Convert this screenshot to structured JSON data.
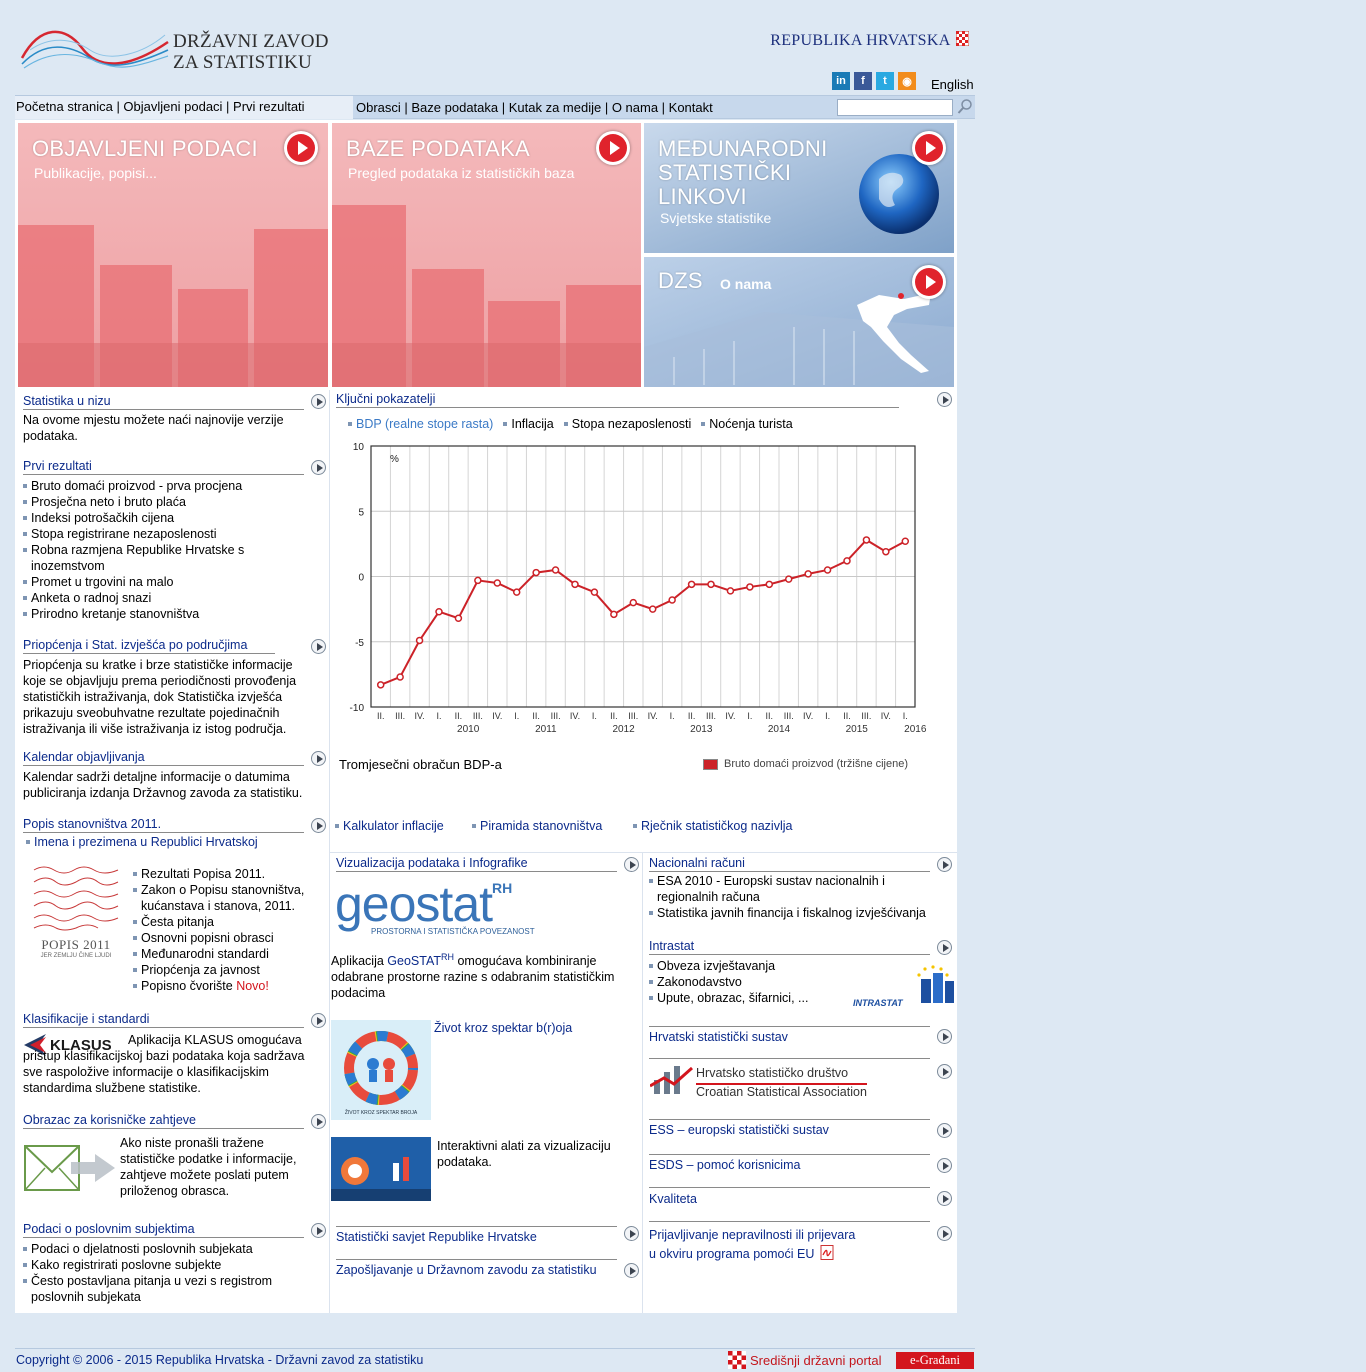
{
  "header": {
    "logo_line1": "DRŽAVNI ZAVOD",
    "logo_line2": "ZA STATISTIKU",
    "republic": "REPUBLIKA HRVATSKA",
    "english": "English"
  },
  "nav": {
    "left": "Početna stranica | Objavljeni podaci | Prvi rezultati",
    "right": "Obrasci | Baze podataka | Kutak za medije | O nama | Kontakt",
    "search_placeholder": ""
  },
  "tiles": {
    "t1": {
      "title": "OBJAVLJENI PODACI",
      "sub": "Publikacije, popisi..."
    },
    "t2": {
      "title": "BAZE PODATAKA",
      "sub": "Pregled podataka iz statističkih baza"
    },
    "t3": {
      "title1": "MEĐUNARODNI",
      "title2": "STATISTIČKI",
      "title3": "LINKOVI",
      "sub": "Svjetske statistike"
    },
    "t4": {
      "title": "DZS",
      "sub": "O nama"
    }
  },
  "left": {
    "s1": {
      "title": "Statistika u nizu",
      "text": "Na ovome mjestu možete naći najnovije verzije podataka."
    },
    "s2": {
      "title": "Prvi rezultati",
      "items": [
        "Bruto domaći proizvod - prva procjena",
        "Prosječna neto i bruto plaća",
        "Indeksi potrošačkih cijena",
        "Stopa registrirane nezaposlenosti",
        "Robna razmjena Republike Hrvatske s inozemstvom",
        "Promet u trgovini na malo",
        "Anketa o radnoj snazi",
        "Prirodno kretanje stanovništva"
      ]
    },
    "s3": {
      "title": "Priopćenja i Stat. izvješća po područjima",
      "text": "Priopćenja su kratke i brze statističke informacije koje se objavljuju prema periodičnosti provođenja statističkih istraživanja, dok Statistička izvješća prikazuju sveobuhvatne rezultate pojedinačnih istraživanja ili više istraživanja iz istog područja."
    },
    "s4": {
      "title": "Kalendar objavljivanja",
      "text": "Kalendar sadrži detaljne informacije o datumima publiciranja izdanja Državnog zavoda za statistiku."
    },
    "s5": {
      "title": "Popis stanovništva 2011.",
      "link": "Imena i prezimena u Republici Hrvatskoj",
      "logo": "POPIS 2011",
      "logo_sub": "JER ZEMLJU ČINE LJUDI",
      "items": [
        "Rezultati Popisa 2011.",
        "Zakon o Popisu stanovništva, kućanstava i stanova, 2011.",
        "Česta pitanja",
        "Osnovni popisni obrasci",
        "Međunarodni standardi",
        "Priopćenja za javnost",
        "Popisno čvorište"
      ],
      "novo": "Novo!"
    },
    "s6": {
      "title": "Klasifikacije i standardi",
      "logo": "KLASUS",
      "text": "Aplikacija KLASUS omogućava pristup klasifikacijskoj bazi podataka koja sadržava sve raspoložive informacije o klasifikacijskim standardima službene statistike."
    },
    "s7": {
      "title": "Obrazac za korisničke zahtjeve",
      "text": "Ako niste pronašli tražene statističke podatke i informacije, zahtjeve možete poslati putem priloženog obrasca."
    },
    "s8": {
      "title": "Podaci o poslovnim subjektima",
      "items": [
        "Podaci o djelatnosti poslovnih subjekata",
        "Kako registrirati poslovne subjekte",
        "Često postavljana pitanja u vezi s registrom poslovnih subjekata"
      ]
    }
  },
  "indicators": {
    "title": "Ključni pokazatelji",
    "tabs": [
      "BDP (realne stope rasta)",
      "Inflacija",
      "Stopa nezaposlenosti",
      "Noćenja turista"
    ],
    "chart_caption": "Tromjesečni obračun BDP-a",
    "links": [
      "Kalkulator inflacije",
      "Piramida stanovništva",
      "Rječnik statističkog nazivlja"
    ]
  },
  "chart_data": {
    "type": "line",
    "ylabel": "%",
    "ylim": [
      -10,
      10
    ],
    "yticks": [
      "10",
      "5",
      "0",
      "-5",
      "-10"
    ],
    "x": [
      "II.",
      "III.",
      "IV.",
      "I.",
      "II.",
      "III.",
      "IV.",
      "I.",
      "II.",
      "III.",
      "IV.",
      "I.",
      "II.",
      "III.",
      "IV.",
      "I.",
      "II.",
      "III.",
      "IV.",
      "I.",
      "II.",
      "III.",
      "IV.",
      "I.",
      "II.",
      "III.",
      "IV.",
      "I."
    ],
    "year_labels": [
      "2010",
      "2011",
      "2012",
      "2013",
      "2014",
      "2015",
      "2016"
    ],
    "series": [
      {
        "name": "Bruto domaći proizvod (tržišne cijene)",
        "color": "#cc2228",
        "values": [
          -8.3,
          -7.7,
          -4.9,
          -2.7,
          -3.2,
          -0.3,
          -0.5,
          -1.2,
          0.3,
          0.5,
          -0.6,
          -1.2,
          -2.9,
          -2.0,
          -2.5,
          -1.8,
          -0.6,
          -0.6,
          -1.1,
          -0.8,
          -0.6,
          -0.2,
          0.2,
          0.5,
          1.2,
          2.8,
          1.9,
          2.7
        ]
      }
    ],
    "grid": true,
    "legend": "bottom-right"
  },
  "middle": {
    "viz": {
      "title": "Vizualizacija podataka i Infografike",
      "logo": "geostat",
      "logo_sup": "RH",
      "logo_sub": "PROSTORNA I STATISTIČKA POVEZANOST",
      "text_before": "Aplikacija ",
      "app": "GeoSTAT",
      "app_sup": "RH",
      "text_after": " omogućava kombiniranje odabrane prostorne razine s odabranim statističkim podacima"
    },
    "zivot": {
      "title": "Život kroz spektar b(r)oja",
      "thumb_label": "ŽIVOT KROZ SPEKTAR BROJA"
    },
    "alati": {
      "text": "Interaktivni alati za vizualizaciju podataka."
    },
    "links": [
      "Statistički savjet Republike Hrvatske",
      "Zapošljavanje u Državnom zavodu za statistiku"
    ]
  },
  "right": {
    "nr": {
      "title": "Nacionalni računi",
      "items": [
        "ESA 2010 - Europski sustav nacionalnih i regionalnih računa",
        "Statistika javnih financija i fiskalnog izvješćivanja"
      ]
    },
    "intrastat": {
      "title": "Intrastat",
      "items": [
        "Obveza izvještavanja",
        "Zakonodavstvo",
        "Upute, obrazac, šifarnici, ..."
      ],
      "logo": "INTRASTAT"
    },
    "hss": {
      "title": "Hrvatski statistički sustav"
    },
    "hsd": {
      "line1": "Hrvatsko statističko društvo",
      "line2": "Croatian Statistical Association"
    },
    "links": [
      "ESS – europski statistički sustav",
      "ESDS – pomoć korisnicima",
      "Kvaliteta"
    ],
    "prijava1": "Prijavljivanje nepravilnosti ili prijevara",
    "prijava2": "u okviru programa pomoći EU"
  },
  "footer": {
    "copyright": "Copyright © 2006 - 2015 Republika Hrvatska - Državni zavod za statistiku",
    "portal": "Središnji državni portal",
    "egradjani": "e-Građani"
  }
}
